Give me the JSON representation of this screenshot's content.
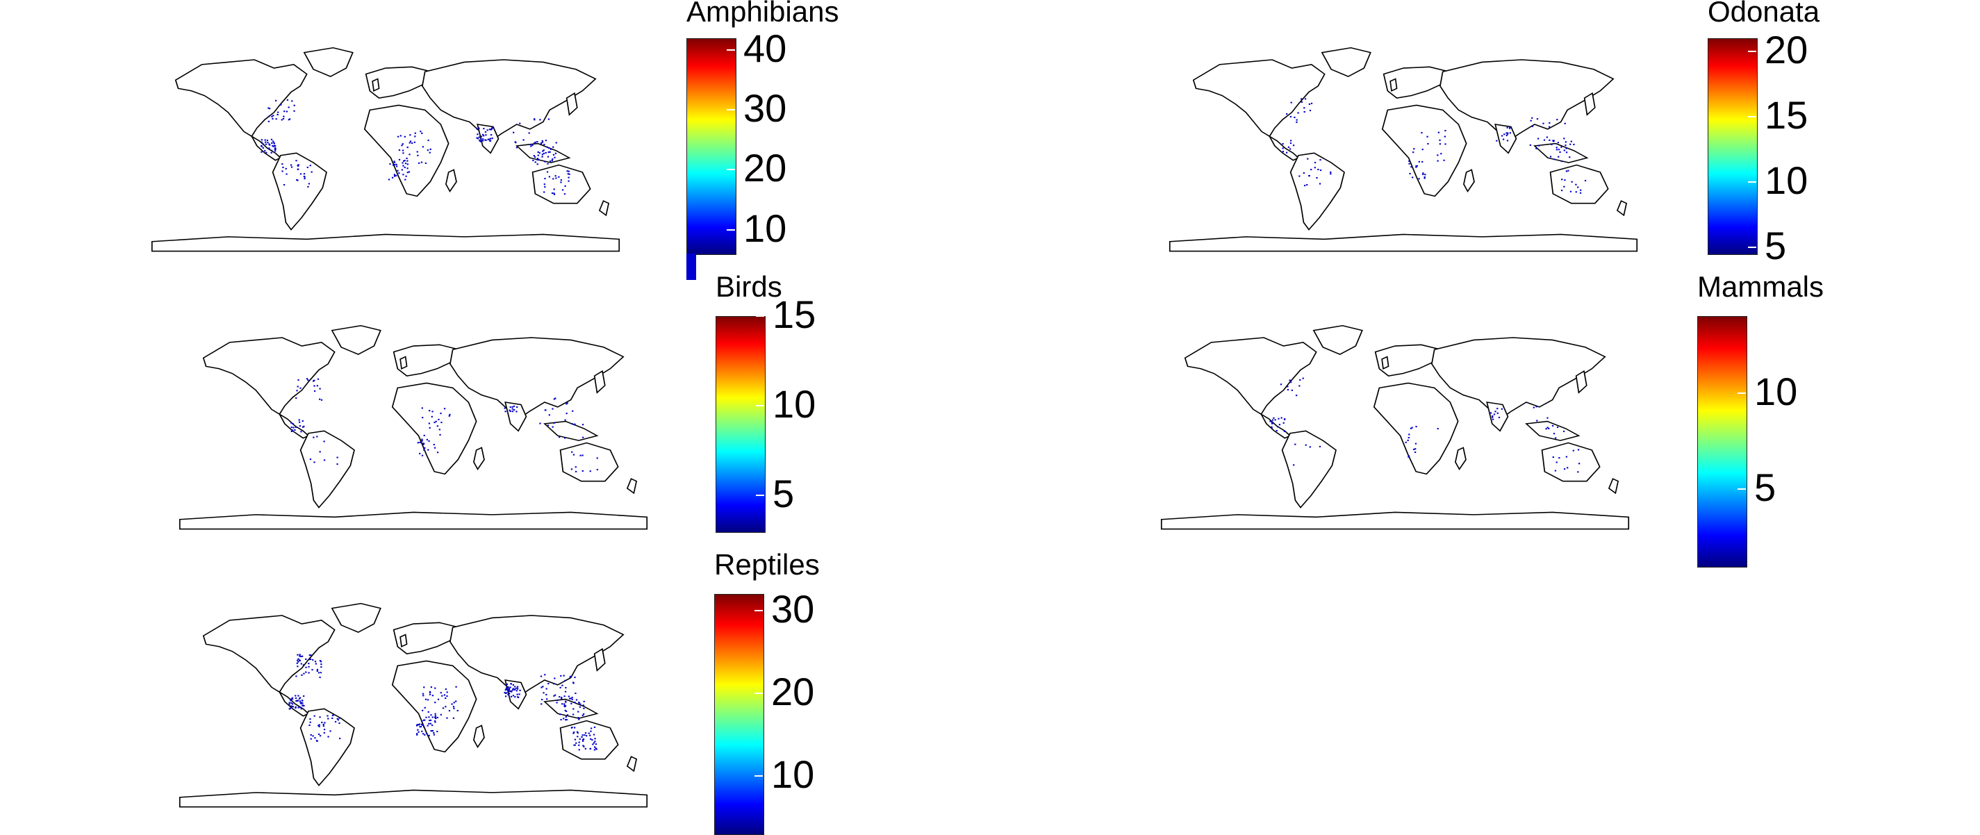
{
  "colorscale": [
    "#00007f",
    "#0000ff",
    "#007fff",
    "#00ffff",
    "#7fff7f",
    "#ffff00",
    "#ff7f00",
    "#ff0000",
    "#7f0000"
  ],
  "map_style": {
    "land_fill": "#ffffff",
    "coast_stroke": "#000000",
    "point_color": "#0000c8"
  },
  "panels": [
    {
      "id": "amphibians",
      "title": "Amphibians",
      "ticks": [
        {
          "value": 10,
          "label": "10"
        },
        {
          "value": 20,
          "label": "20"
        },
        {
          "value": 30,
          "label": "30"
        },
        {
          "value": 40,
          "label": "40"
        }
      ],
      "vmin": 6,
      "vmax": 42,
      "has_low_stub": true,
      "density": 260
    },
    {
      "id": "odonata",
      "title": "Odonata",
      "ticks": [
        {
          "value": 5,
          "label": "5"
        },
        {
          "value": 10,
          "label": "10"
        },
        {
          "value": 15,
          "label": "15"
        },
        {
          "value": 20,
          "label": "20"
        }
      ],
      "vmin": 4.5,
      "vmax": 21,
      "has_low_stub": false,
      "density": 140
    },
    {
      "id": "birds",
      "title": "Birds",
      "ticks": [
        {
          "value": 5,
          "label": "5"
        },
        {
          "value": 10,
          "label": "10"
        },
        {
          "value": 15,
          "label": "15"
        }
      ],
      "vmin": 3,
      "vmax": 15,
      "has_low_stub": false,
      "density": 120
    },
    {
      "id": "mammals",
      "title": "Mammals",
      "ticks": [
        {
          "value": 5,
          "label": "5"
        },
        {
          "value": 10,
          "label": "10"
        }
      ],
      "vmin": 1,
      "vmax": 14,
      "has_low_stub": false,
      "density": 80
    },
    {
      "id": "reptiles",
      "title": "Reptiles",
      "ticks": [
        {
          "value": 10,
          "label": "10"
        },
        {
          "value": 20,
          "label": "20"
        },
        {
          "value": 30,
          "label": "30"
        }
      ],
      "vmin": 3,
      "vmax": 32,
      "has_low_stub": false,
      "density": 360
    }
  ]
}
